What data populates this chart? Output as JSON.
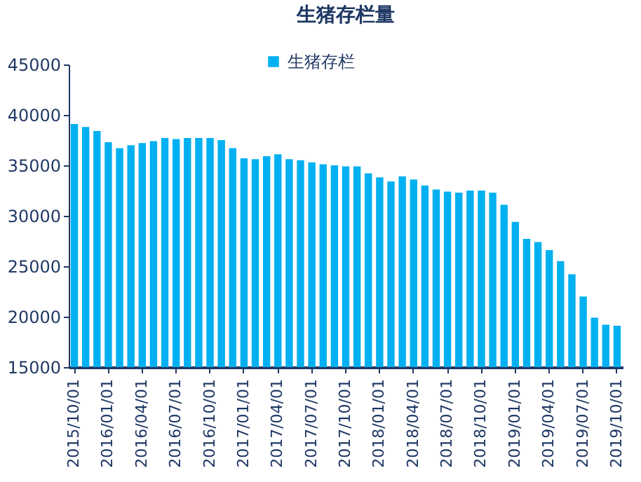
{
  "chart_data": {
    "type": "bar",
    "title": "生猪存栏量",
    "categories": [
      "2015/10/01",
      null,
      null,
      "2016/01/01",
      null,
      null,
      "2016/04/01",
      null,
      null,
      "2016/07/01",
      null,
      null,
      "2016/10/01",
      null,
      null,
      "2017/01/01",
      null,
      null,
      "2017/04/01",
      null,
      null,
      "2017/07/01",
      null,
      null,
      "2017/10/01",
      null,
      null,
      "2018/01/01",
      null,
      null,
      "2018/04/01",
      null,
      null,
      "2018/07/01",
      null,
      null,
      "2018/10/01",
      null,
      null,
      "2019/01/01",
      null,
      null,
      "2019/04/01",
      null,
      null,
      "2019/07/01",
      null,
      null,
      "2019/10/01"
    ],
    "series": [
      {
        "name": "生猪存栏",
        "color": "#00b0f0",
        "values": [
          39100,
          38800,
          38400,
          37300,
          36700,
          37000,
          37200,
          37400,
          37700,
          37600,
          37700,
          37700,
          37700,
          37500,
          36700,
          35700,
          35600,
          35900,
          36100,
          35600,
          35500,
          35300,
          35100,
          35000,
          34900,
          34900,
          34200,
          33800,
          33400,
          33900,
          33600,
          33000,
          32600,
          32400,
          32300,
          32500,
          32500,
          32300,
          31100,
          29400,
          27700,
          27400,
          26600,
          25500,
          24200,
          22000,
          19900,
          19200,
          19100
        ]
      }
    ],
    "ylim": [
      15000,
      45000
    ],
    "yticks": [
      15000,
      20000,
      25000,
      30000,
      35000,
      40000,
      45000
    ],
    "legend": "top",
    "grid": false
  }
}
